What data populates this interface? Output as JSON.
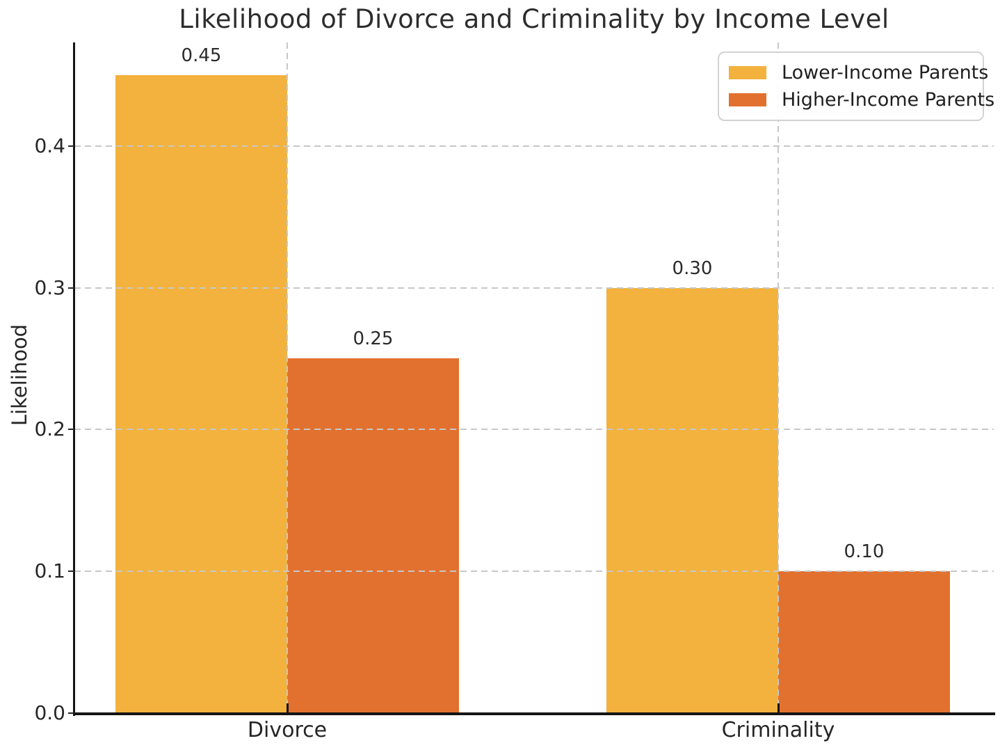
{
  "chart_data": {
    "type": "bar",
    "title": "Likelihood of Divorce and Criminality by Income Level",
    "xlabel": "",
    "ylabel": "Likelihood",
    "categories": [
      "Divorce",
      "Criminality"
    ],
    "series": [
      {
        "name": "Lower-Income Parents",
        "color": "#F2B23D",
        "values": [
          0.45,
          0.3
        ],
        "labels": [
          "0.45",
          "0.30"
        ]
      },
      {
        "name": "Higher-Income Parents",
        "color": "#E2712F",
        "values": [
          0.25,
          0.1
        ],
        "labels": [
          "0.25",
          "0.10"
        ]
      }
    ],
    "ylim": [
      0,
      0.473
    ],
    "yticks": [
      {
        "value": 0.0,
        "label": "0.0"
      },
      {
        "value": 0.1,
        "label": "0.1"
      },
      {
        "value": 0.2,
        "label": "0.2"
      },
      {
        "value": 0.3,
        "label": "0.3"
      },
      {
        "value": 0.4,
        "label": "0.4"
      }
    ],
    "grid": {
      "style": "dashed",
      "color": "#c7c7c9",
      "axes": "both",
      "drawn_over_bars": true
    },
    "legend": {
      "position": "upper-right"
    },
    "colors": {
      "lower_income": "#F2B23D",
      "higher_income": "#E2712F",
      "axis": "#151515",
      "text": "#262626",
      "background": "#ffffff"
    }
  }
}
